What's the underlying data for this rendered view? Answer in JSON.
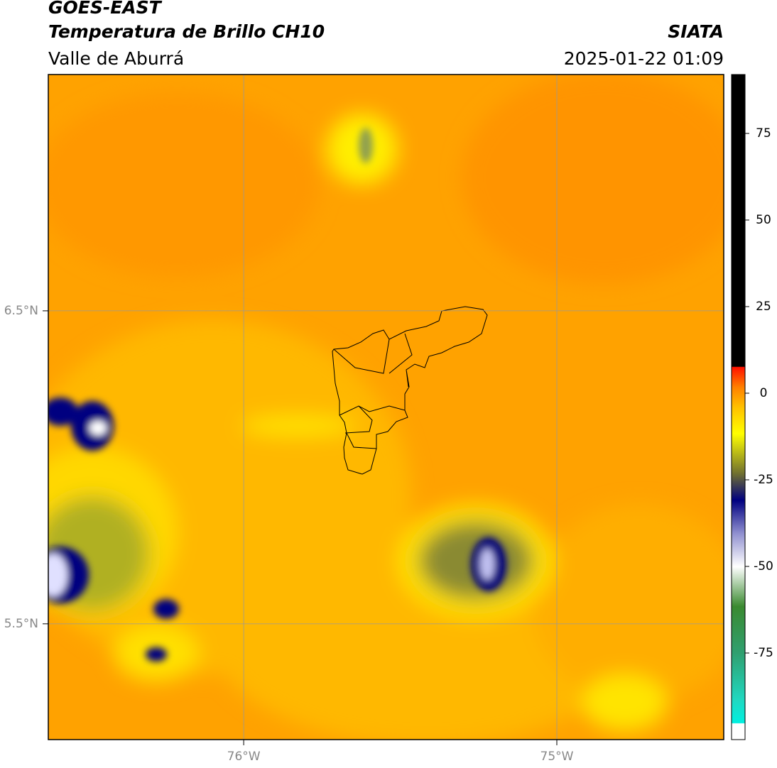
{
  "header": {
    "title": "GOES-EAST",
    "subtitle": "Temperatura de Brillo CH10",
    "region": "Valle de Aburrá",
    "source": "SIATA",
    "datetime": "2025-01-22 01:09"
  },
  "map": {
    "lonlim": [
      -76.624,
      -74.467
    ],
    "latlim": [
      5.13,
      7.255
    ],
    "xticks": [
      {
        "value": -76,
        "label": "76°W"
      },
      {
        "value": -75,
        "label": "75°W"
      }
    ],
    "yticks": [
      {
        "value": 6.5,
        "label": "6.5°N"
      },
      {
        "value": 5.5,
        "label": "5.5°N"
      }
    ],
    "grid": true
  },
  "colorbar": {
    "lim": [
      -100,
      92
    ],
    "ticks": [
      75,
      50,
      25,
      0,
      -25,
      -50,
      -75
    ]
  }
}
